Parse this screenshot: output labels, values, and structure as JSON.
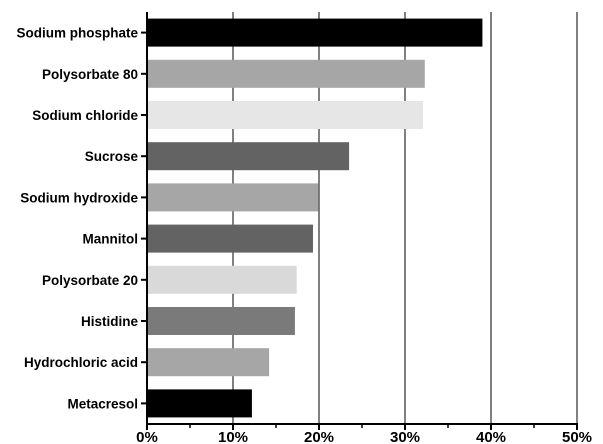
{
  "chart_data": {
    "type": "bar",
    "orientation": "horizontal",
    "categories": [
      "Sodium phosphate",
      "Polysorbate 80",
      "Sodium chloride",
      "Sucrose",
      "Sodium hydroxide",
      "Mannitol",
      "Polysorbate 20",
      "Histidine",
      "Hydrochloric acid",
      "Metacresol"
    ],
    "values": [
      39,
      32.3,
      32.1,
      23.5,
      19.9,
      19.3,
      17.4,
      17.2,
      14.2,
      12.2
    ],
    "colors": [
      "#000000",
      "#a6a6a6",
      "#e6e6e6",
      "#636363",
      "#a6a6a6",
      "#636363",
      "#d9d9d9",
      "#7a7a7a",
      "#a6a6a6",
      "#000000"
    ],
    "xlim": [
      0,
      50
    ],
    "xticks": [
      "0%",
      "10%",
      "20%",
      "30%",
      "40%",
      "50%"
    ],
    "xtick_values": [
      0,
      10,
      20,
      30,
      40,
      50
    ],
    "grid": "vertical",
    "title": "",
    "xlabel": "",
    "ylabel": ""
  }
}
